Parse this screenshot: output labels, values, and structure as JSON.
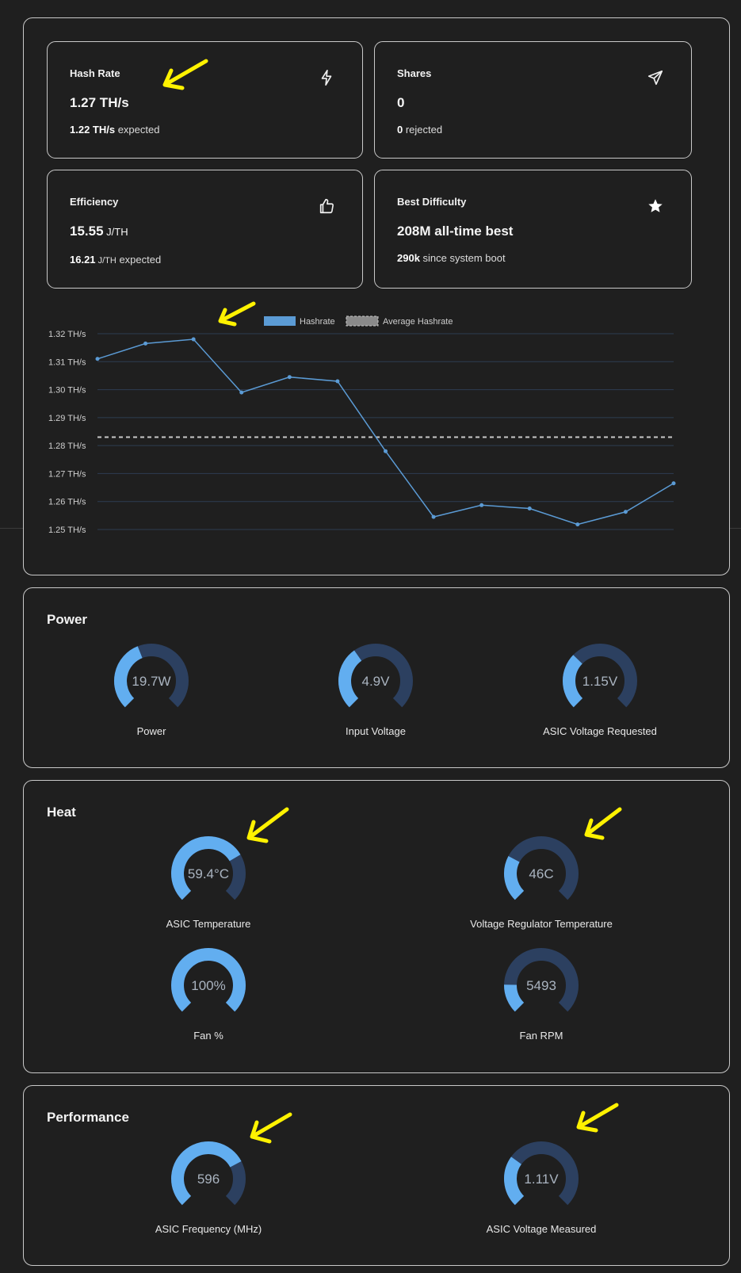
{
  "cards": {
    "hashrate": {
      "title": "Hash Rate",
      "value": "1.27 TH/s",
      "sub_bold": "1.22 TH/s",
      "sub_text": " expected",
      "icon": "lightning-icon"
    },
    "shares": {
      "title": "Shares",
      "value": "0",
      "sub_bold": "0",
      "sub_text": " rejected",
      "icon": "send-icon"
    },
    "efficiency": {
      "title": "Efficiency",
      "value_num": "15.55",
      "value_unit": " J/TH",
      "sub_bold": "16.21",
      "sub_unit": " J/TH",
      "sub_text": " expected",
      "icon": "thumbs-up-icon"
    },
    "best_difficulty": {
      "title": "Best Difficulty",
      "value": "208M all-time best",
      "sub_bold": "290k",
      "sub_text": " since system boot",
      "icon": "star-icon"
    }
  },
  "chart_data": {
    "type": "line",
    "legend": [
      "Hashrate",
      "Average Hashrate"
    ],
    "series": [
      {
        "name": "Hashrate",
        "values": [
          1.311,
          1.3165,
          1.318,
          1.299,
          1.3045,
          1.303,
          1.278,
          1.2545,
          1.2587,
          1.2575,
          1.2518,
          1.2563,
          1.2665
        ]
      },
      {
        "name": "Average Hashrate",
        "values": [
          1.283
        ]
      }
    ],
    "y_ticks": [
      "1.32 TH/s",
      "1.31 TH/s",
      "1.30 TH/s",
      "1.29 TH/s",
      "1.28 TH/s",
      "1.27 TH/s",
      "1.26 TH/s",
      "1.25 TH/s"
    ],
    "ylim": [
      1.25,
      1.32
    ],
    "colors": {
      "line": "#5b9bd5",
      "avg": "#c8c8c8",
      "grid": "#2e3d52"
    }
  },
  "power": {
    "title": "Power",
    "gauges": [
      {
        "value": "19.7W",
        "label": "Power",
        "fraction": 0.42
      },
      {
        "value": "4.9V",
        "label": "Input Voltage",
        "fraction": 0.37
      },
      {
        "value": "1.15V",
        "label": "ASIC Voltage Requested",
        "fraction": 0.33
      }
    ]
  },
  "heat": {
    "title": "Heat",
    "gauges": [
      {
        "value": "59.4°C",
        "label": "ASIC Temperature",
        "fraction": 0.72
      },
      {
        "value": "46C",
        "label": "Voltage Regulator Temperature",
        "fraction": 0.27
      },
      {
        "value": "100%",
        "label": "Fan %",
        "fraction": 1.0
      },
      {
        "value": "5493",
        "label": "Fan RPM",
        "fraction": 0.17
      }
    ]
  },
  "performance": {
    "title": "Performance",
    "gauges": [
      {
        "value": "596",
        "label": "ASIC Frequency (MHz)",
        "fraction": 0.73
      },
      {
        "value": "1.11V",
        "label": "ASIC Voltage Measured",
        "fraction": 0.3
      }
    ]
  },
  "colors": {
    "gauge_fill": "#62aef0",
    "gauge_track": "#2c4060",
    "gauge_text": "#aab4c0",
    "arrow": "#fff200"
  }
}
